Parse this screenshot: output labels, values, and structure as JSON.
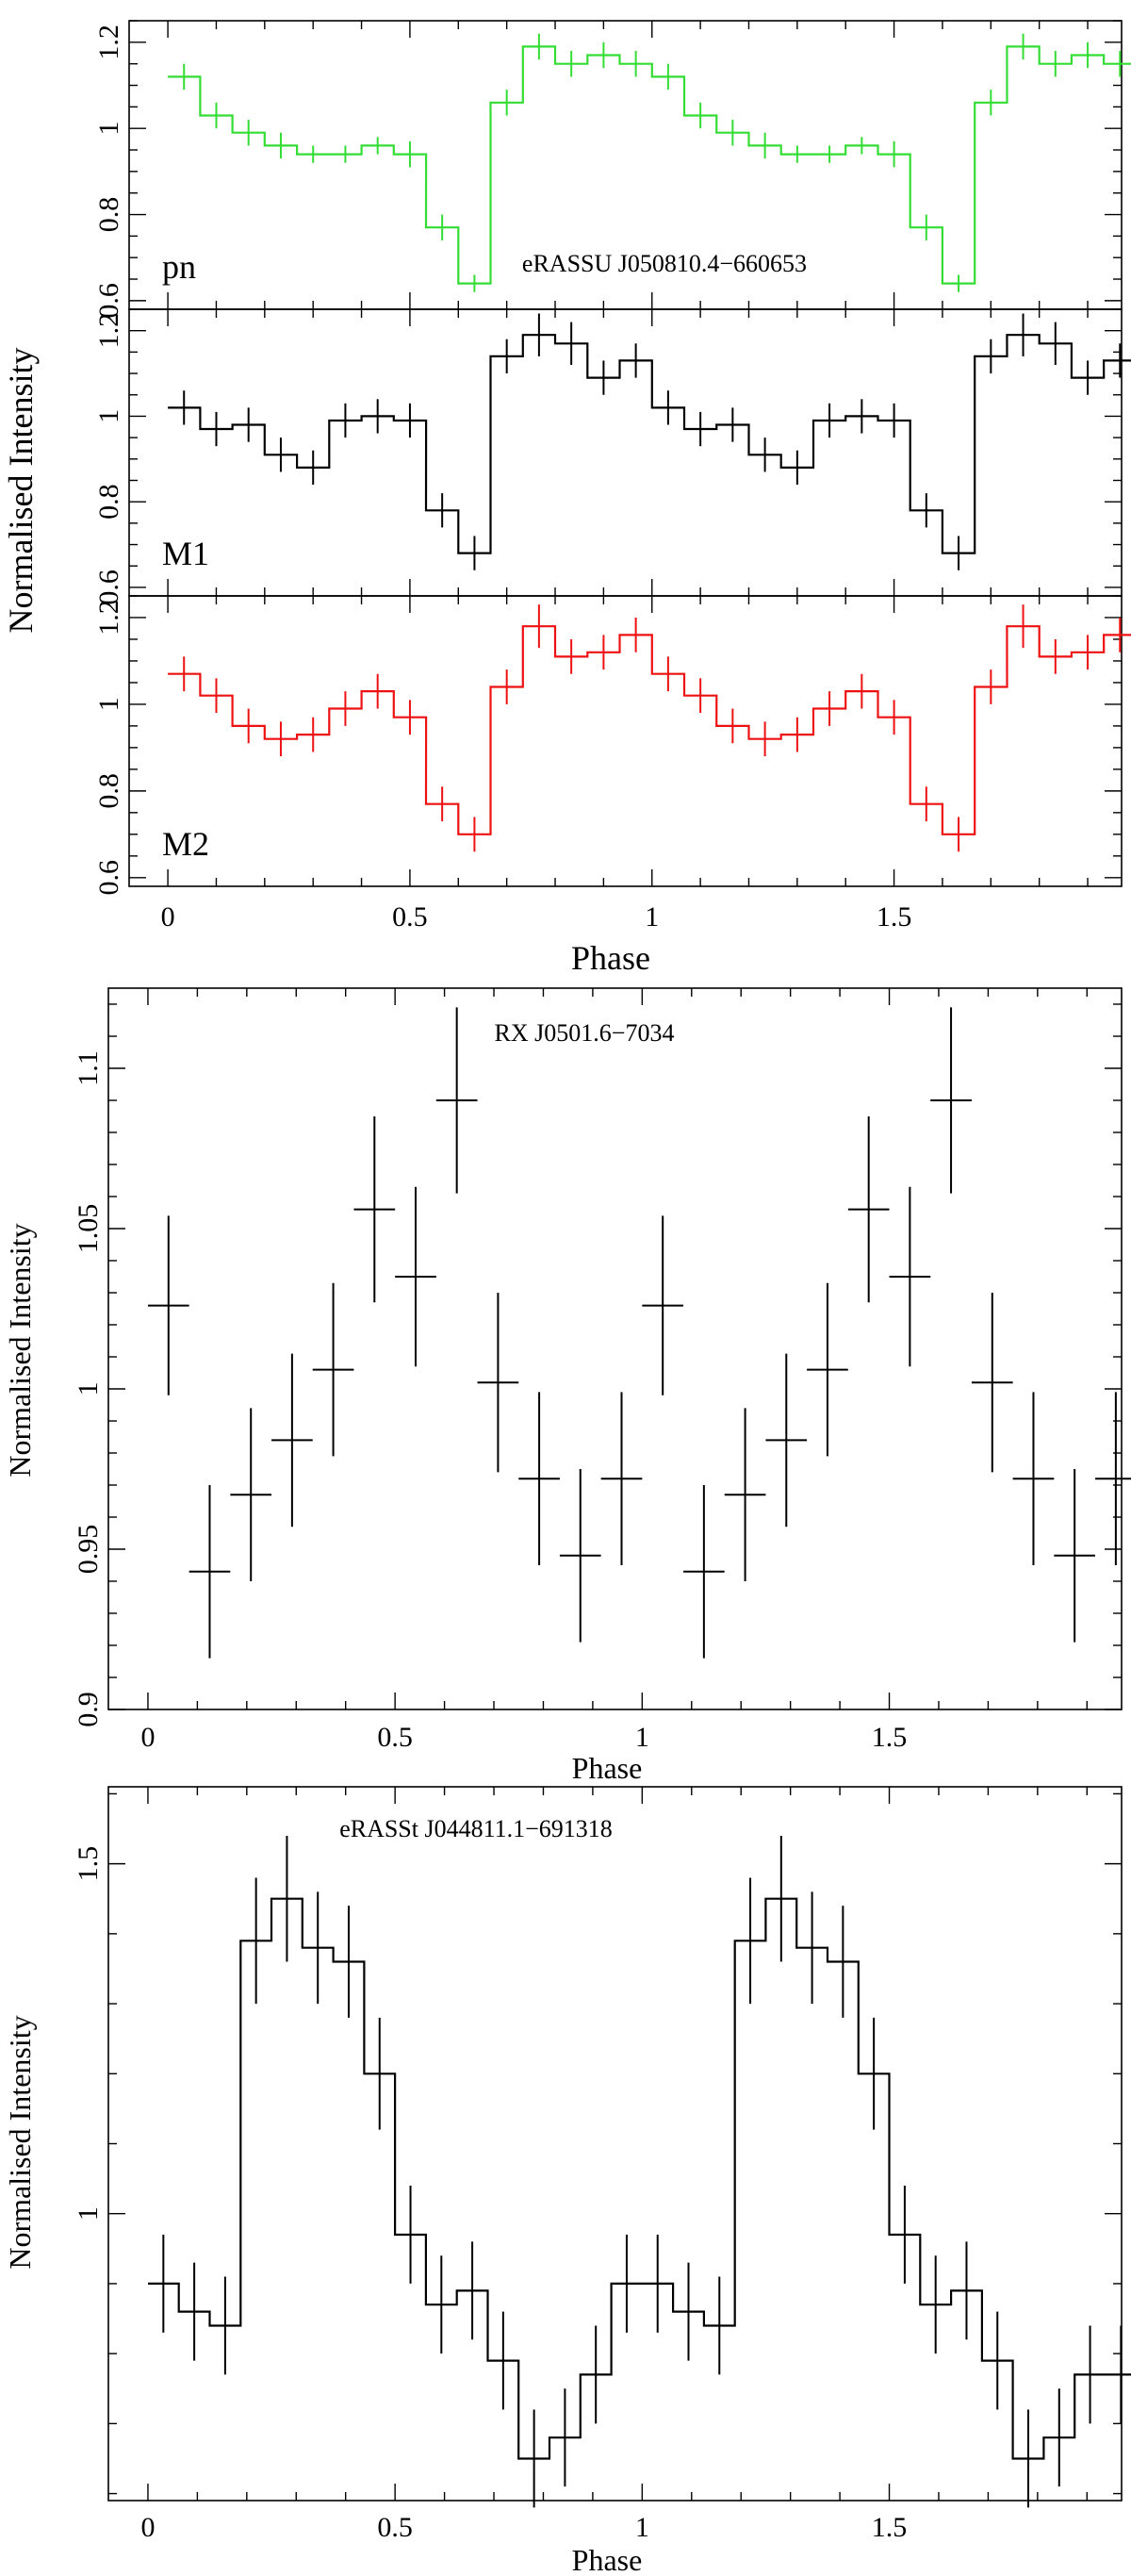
{
  "chart_data": [
    {
      "type": "line",
      "title": "eRASSU J050810.4−660653",
      "xlabel": "Phase",
      "ylabel": "Normalised Intensity",
      "style": "step-with-errorbars",
      "xlim": [
        -0.08,
        1.97
      ],
      "x_ticks": [
        "0",
        "0.5",
        "1",
        "1.5"
      ],
      "bin_width": 0.0667,
      "x": [
        0.0,
        0.0667,
        0.1333,
        0.2,
        0.2667,
        0.3333,
        0.4,
        0.4667,
        0.5333,
        0.6,
        0.6667,
        0.7333,
        0.8,
        0.8667,
        0.9333,
        1.0,
        1.0667,
        1.1333,
        1.2,
        1.2667,
        1.3333,
        1.4,
        1.4667,
        1.5333,
        1.6,
        1.6667,
        1.7333,
        1.8,
        1.8667,
        1.9333
      ],
      "series": [
        {
          "name": "pn",
          "color": "#33dd33",
          "ylim": [
            0.58,
            1.25
          ],
          "y_ticks": [
            "0.6",
            "0.8",
            "1",
            "1.2"
          ],
          "values": [
            1.12,
            1.03,
            0.99,
            0.96,
            0.94,
            0.94,
            0.96,
            0.94,
            0.77,
            0.64,
            1.06,
            1.19,
            1.15,
            1.17,
            1.15,
            1.12,
            1.03,
            0.99,
            0.96,
            0.94,
            0.94,
            0.96,
            0.94,
            0.77,
            0.64,
            1.06,
            1.19,
            1.15,
            1.17,
            1.15
          ],
          "errors": [
            0.03,
            0.03,
            0.03,
            0.03,
            0.02,
            0.02,
            0.02,
            0.03,
            0.03,
            0.02,
            0.03,
            0.03,
            0.03,
            0.03,
            0.03,
            0.03,
            0.03,
            0.03,
            0.03,
            0.02,
            0.02,
            0.02,
            0.03,
            0.03,
            0.02,
            0.03,
            0.03,
            0.03,
            0.03,
            0.03
          ]
        },
        {
          "name": "M1",
          "color": "#000000",
          "ylim": [
            0.58,
            1.25
          ],
          "y_ticks": [
            "0.6",
            "0.8",
            "1",
            "1.2"
          ],
          "values": [
            1.02,
            0.97,
            0.98,
            0.91,
            0.88,
            0.99,
            1.0,
            0.99,
            0.78,
            0.68,
            1.14,
            1.19,
            1.17,
            1.09,
            1.13,
            1.02,
            0.97,
            0.98,
            0.91,
            0.88,
            0.99,
            1.0,
            0.99,
            0.78,
            0.68,
            1.14,
            1.19,
            1.17,
            1.09,
            1.13
          ],
          "errors": [
            0.04,
            0.04,
            0.04,
            0.04,
            0.04,
            0.04,
            0.04,
            0.04,
            0.04,
            0.04,
            0.04,
            0.05,
            0.05,
            0.04,
            0.04,
            0.04,
            0.04,
            0.04,
            0.04,
            0.04,
            0.04,
            0.04,
            0.04,
            0.04,
            0.04,
            0.04,
            0.05,
            0.05,
            0.04,
            0.04
          ]
        },
        {
          "name": "M2",
          "color": "#ee1111",
          "ylim": [
            0.58,
            1.25
          ],
          "y_ticks": [
            "0.6",
            "0.8",
            "1",
            "1.2"
          ],
          "values": [
            1.07,
            1.02,
            0.95,
            0.92,
            0.93,
            0.99,
            1.03,
            0.97,
            0.77,
            0.7,
            1.04,
            1.18,
            1.11,
            1.12,
            1.16,
            1.07,
            1.02,
            0.95,
            0.92,
            0.93,
            0.99,
            1.03,
            0.97,
            0.77,
            0.7,
            1.04,
            1.18,
            1.11,
            1.12,
            1.16
          ],
          "errors": [
            0.04,
            0.04,
            0.04,
            0.04,
            0.04,
            0.04,
            0.04,
            0.04,
            0.04,
            0.04,
            0.04,
            0.05,
            0.04,
            0.04,
            0.04,
            0.04,
            0.04,
            0.04,
            0.04,
            0.04,
            0.04,
            0.04,
            0.04,
            0.04,
            0.04,
            0.04,
            0.05,
            0.04,
            0.04,
            0.04
          ]
        }
      ]
    },
    {
      "type": "scatter",
      "title": "RX J0501.6−7034",
      "xlabel": "Phase",
      "ylabel": "Normalised Intensity",
      "style": "crosses-with-errorbars",
      "xlim": [
        -0.08,
        1.97
      ],
      "ylim": [
        0.9,
        1.125
      ],
      "x_ticks": [
        "0",
        "0.5",
        "1",
        "1.5"
      ],
      "y_ticks": [
        "0.9",
        "0.95",
        "1",
        "1.05",
        "1.1"
      ],
      "bin_width": 0.0833,
      "x": [
        0.0,
        0.0833,
        0.1667,
        0.25,
        0.3333,
        0.4167,
        0.5,
        0.5833,
        0.6667,
        0.75,
        0.8333,
        0.9167,
        1.0,
        1.0833,
        1.1667,
        1.25,
        1.3333,
        1.4167,
        1.5,
        1.5833,
        1.6667,
        1.75,
        1.8333,
        1.9167
      ],
      "values": [
        1.026,
        0.943,
        0.967,
        0.984,
        1.006,
        1.056,
        1.035,
        1.09,
        1.002,
        0.972,
        0.948,
        0.972,
        1.026,
        0.943,
        0.967,
        0.984,
        1.006,
        1.056,
        1.035,
        1.09,
        1.002,
        0.972,
        0.948,
        0.972
      ],
      "errors": [
        0.028,
        0.027,
        0.027,
        0.027,
        0.027,
        0.029,
        0.028,
        0.029,
        0.028,
        0.027,
        0.027,
        0.027,
        0.028,
        0.027,
        0.027,
        0.027,
        0.027,
        0.029,
        0.028,
        0.029,
        0.028,
        0.027,
        0.027,
        0.027
      ]
    },
    {
      "type": "line",
      "title": "eRASSt J044811.1−691318",
      "xlabel": "Phase",
      "ylabel": "Normalised Intensity",
      "style": "step-with-errorbars",
      "xlim": [
        -0.08,
        1.97
      ],
      "ylim": [
        0.59,
        1.61
      ],
      "x_ticks": [
        "0",
        "0.5",
        "1",
        "1.5"
      ],
      "y_ticks": [
        "1",
        "1.5"
      ],
      "bin_width": 0.0625,
      "x": [
        0.0,
        0.0625,
        0.125,
        0.1875,
        0.25,
        0.3125,
        0.375,
        0.4375,
        0.5,
        0.5625,
        0.625,
        0.6875,
        0.75,
        0.8125,
        0.875,
        0.9375,
        1.0,
        1.0625,
        1.125,
        1.1875,
        1.25,
        1.3125,
        1.375,
        1.4375,
        1.5,
        1.5625,
        1.625,
        1.6875,
        1.75,
        1.8125,
        1.875,
        1.9375
      ],
      "values": [
        0.9,
        0.86,
        0.84,
        1.39,
        1.45,
        1.38,
        1.36,
        1.2,
        0.97,
        0.87,
        0.89,
        0.79,
        0.65,
        0.68,
        0.77,
        0.9,
        0.9,
        0.86,
        0.84,
        1.39,
        1.45,
        1.38,
        1.36,
        1.2,
        0.97,
        0.87,
        0.89,
        0.79,
        0.65,
        0.68,
        0.77,
        0.77
      ],
      "errors": [
        0.07,
        0.07,
        0.07,
        0.09,
        0.09,
        0.08,
        0.08,
        0.08,
        0.07,
        0.07,
        0.07,
        0.07,
        0.07,
        0.07,
        0.07,
        0.07,
        0.07,
        0.07,
        0.07,
        0.09,
        0.09,
        0.08,
        0.08,
        0.08,
        0.07,
        0.07,
        0.07,
        0.07,
        0.07,
        0.07,
        0.07,
        0.07
      ]
    }
  ]
}
